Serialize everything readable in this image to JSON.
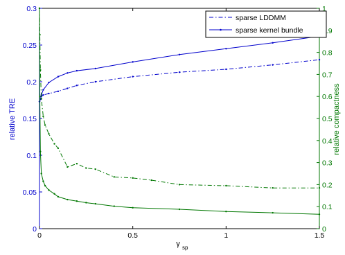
{
  "chart_data": {
    "type": "line",
    "x_range": [
      0,
      1.5
    ],
    "x_ticks": [
      0,
      0.5,
      1,
      1.5
    ],
    "x_tick_labels": [
      "0",
      "0.5",
      "1",
      "1.5"
    ],
    "xlabel": "γ",
    "xlabel_sub": "sp",
    "left_axis": {
      "label": "relative TRE",
      "range": [
        0,
        0.3
      ],
      "ticks": [
        0,
        0.05,
        0.1,
        0.15,
        0.2,
        0.25,
        0.3
      ],
      "tick_labels": [
        "0",
        "0.05",
        "0.1",
        "0.15",
        "0.2",
        "0.25",
        "0.3"
      ],
      "color": "#0000cc"
    },
    "right_axis": {
      "label": "relative compactness",
      "range": [
        0,
        1
      ],
      "ticks": [
        0,
        0.1,
        0.2,
        0.3,
        0.4,
        0.5,
        0.6,
        0.7,
        0.8,
        0.9,
        1
      ],
      "tick_labels": [
        "0",
        "0.1",
        "0.2",
        "0.3",
        "0.4",
        "0.5",
        "0.6",
        "0.7",
        "0.8",
        "0.9",
        "1"
      ],
      "color": "#007700"
    },
    "legend": {
      "position": "top-right",
      "entries": [
        {
          "label": "sparse LDDMM",
          "style": "dashdot",
          "color": "#0000cc"
        },
        {
          "label": "sparse kernel bundle",
          "style": "solid",
          "color": "#0000cc"
        }
      ]
    },
    "grid": false,
    "series": [
      {
        "name": "sparse LDDMM",
        "axis": "left",
        "color": "#0000cc",
        "style": "dashdot",
        "x": [
          0,
          0.005,
          0.01,
          0.02,
          0.05,
          0.1,
          0.15,
          0.2,
          0.3,
          0.5,
          0.75,
          1,
          1.25,
          1.5
        ],
        "y": [
          0.173,
          0.176,
          0.18,
          0.182,
          0.184,
          0.187,
          0.191,
          0.195,
          0.2,
          0.207,
          0.213,
          0.217,
          0.223,
          0.23
        ]
      },
      {
        "name": "sparse kernel bundle",
        "axis": "left",
        "color": "#0000cc",
        "style": "solid",
        "x": [
          0,
          0.005,
          0.01,
          0.02,
          0.05,
          0.1,
          0.15,
          0.2,
          0.3,
          0.5,
          0.75,
          1,
          1.25,
          1.5
        ],
        "y": [
          0.173,
          0.176,
          0.182,
          0.189,
          0.199,
          0.207,
          0.212,
          0.215,
          0.218,
          0.227,
          0.237,
          0.245,
          0.253,
          0.262
        ]
      },
      {
        "axis": "right",
        "color": "#007700",
        "style": "dashdot",
        "x": [
          0,
          0.002,
          0.005,
          0.01,
          0.02,
          0.03,
          0.05,
          0.08,
          0.1,
          0.15,
          0.2,
          0.25,
          0.3,
          0.4,
          0.5,
          0.6,
          0.75,
          1,
          1.25,
          1.5
        ],
        "y": [
          1.0,
          0.88,
          0.72,
          0.59,
          0.51,
          0.47,
          0.43,
          0.385,
          0.365,
          0.28,
          0.295,
          0.275,
          0.27,
          0.235,
          0.23,
          0.22,
          0.2,
          0.195,
          0.185,
          0.185
        ]
      },
      {
        "axis": "right",
        "color": "#007700",
        "style": "solid",
        "x": [
          0,
          0.002,
          0.005,
          0.01,
          0.02,
          0.03,
          0.05,
          0.08,
          0.1,
          0.15,
          0.2,
          0.25,
          0.3,
          0.4,
          0.5,
          0.75,
          1,
          1.25,
          1.5
        ],
        "y": [
          1.0,
          0.6,
          0.35,
          0.25,
          0.215,
          0.195,
          0.175,
          0.158,
          0.145,
          0.132,
          0.125,
          0.118,
          0.113,
          0.102,
          0.095,
          0.088,
          0.078,
          0.072,
          0.065
        ]
      }
    ]
  }
}
